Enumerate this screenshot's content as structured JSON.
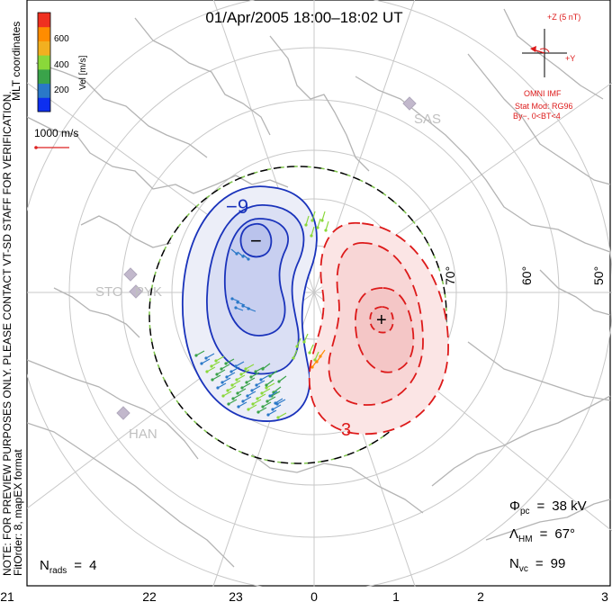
{
  "chart_data": {
    "type": "polar-convection-map",
    "title": "01/Apr/2005 18:00–18:02 UT",
    "coordinate_system": "MLT coordinates",
    "side_notes": [
      "NOTE: FOR PREVIEW PURPOSES ONLY. PLEASE CONTACT VT-SD STAFF FOR VERIFICATION.",
      "FitOrder: 8,  mapEX format"
    ],
    "colorbar": {
      "label": "Vel [m/s]",
      "ticks": [
        "200",
        "400",
        "600"
      ],
      "colors": [
        "#0d2ff0",
        "#2a78c8",
        "#3aa34a",
        "#8ad83a",
        "#f2b020",
        "#ff8c00",
        "#ef3020"
      ]
    },
    "velocity_scale": {
      "label": "1000 m/s",
      "color": "#dd2222"
    },
    "mlt_ticks": [
      "21",
      "22",
      "23",
      "0",
      "1",
      "2",
      "3"
    ],
    "latitude_labels": [
      "70°",
      "60°",
      "50°"
    ],
    "stations": [
      "SAS",
      "STO",
      "PYK",
      "HAN"
    ],
    "potential_contours": {
      "negative": {
        "label": "−9",
        "extremum_marker": "−",
        "color": "#1a33bb"
      },
      "positive": {
        "label": "3",
        "extremum_marker": "+",
        "color": "#dd1a1a"
      }
    },
    "imf": {
      "z_label": "+Z (5 nT)",
      "y_label": "+Y",
      "source_label": "OMNI IMF",
      "model": "Stat Mod: RG96",
      "condition": "By−, 0<BT<4",
      "color": "#dd1a1a"
    },
    "stats": {
      "phi_pc_symbol": "Φ",
      "phi_pc_sub": "pc",
      "phi_pc_value": "38 kV",
      "lambda_hm_symbol": "Λ",
      "lambda_hm_sub": "HM",
      "lambda_hm_value": "67°",
      "n_vc_symbol": "N",
      "n_vc_sub": "vc",
      "n_vc_value": 99,
      "n_rads_symbol": "N",
      "n_rads_sub": "rads",
      "n_rads_value": 4
    }
  }
}
